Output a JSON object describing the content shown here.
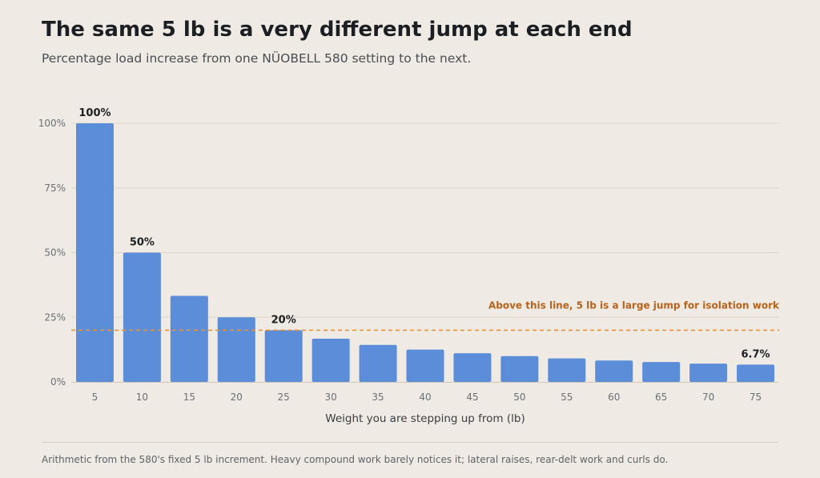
{
  "header": {
    "title": "The same 5 lb is a very different jump at each end",
    "subtitle": "Percentage load increase from one NÜOBELL 580 setting to the next."
  },
  "footer": {
    "note": "Arithmetic from the 580's fixed 5 lb increment. Heavy compound work barely notices it; lateral raises, rear-delt work and curls do."
  },
  "chart_data": {
    "type": "bar",
    "title": "The same 5 lb is a very different jump at each end",
    "subtitle": "Percentage load increase from one NÜOBELL 580 setting to the next.",
    "xlabel": "Weight you are stepping up from (lb)",
    "ylabel": "",
    "categories": [
      "5",
      "10",
      "15",
      "20",
      "25",
      "30",
      "35",
      "40",
      "45",
      "50",
      "55",
      "60",
      "65",
      "70",
      "75"
    ],
    "values": [
      100,
      50,
      33.3,
      25,
      20,
      16.7,
      14.3,
      12.5,
      11.1,
      10,
      9.1,
      8.3,
      7.7,
      7.1,
      6.7
    ],
    "ylim": [
      0,
      100
    ],
    "yticks": [
      0,
      25,
      50,
      75,
      100
    ],
    "ytick_labels": [
      "0%",
      "25%",
      "50%",
      "75%",
      "100%"
    ],
    "grid": true,
    "data_labels": [
      {
        "index": 0,
        "text": "100%"
      },
      {
        "index": 1,
        "text": "50%"
      },
      {
        "index": 4,
        "text": "20%"
      },
      {
        "index": 14,
        "text": "6.7%"
      }
    ],
    "reference_line": {
      "value": 20,
      "label": "Above this line, 5 lb is a large jump for isolation work",
      "style": "dashed"
    },
    "colors": {
      "bar": "#5b8dd9",
      "reference": "#e8923a",
      "reference_label": "#b8621b",
      "grid": "#ddd6c6",
      "axis_text": "#6b6f75"
    }
  }
}
